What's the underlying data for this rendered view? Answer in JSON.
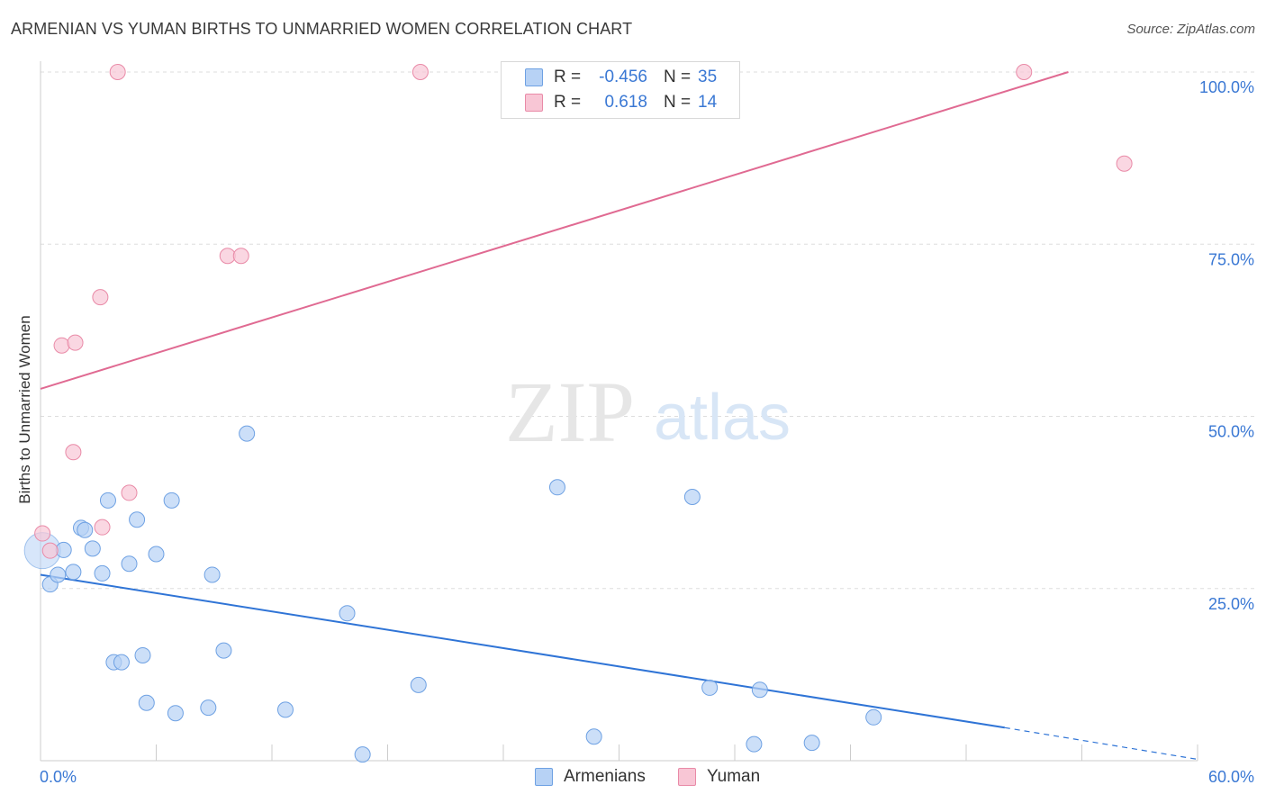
{
  "header": {
    "title": "ARMENIAN VS YUMAN BIRTHS TO UNMARRIED WOMEN CORRELATION CHART",
    "source": "Source: ZipAtlas.com"
  },
  "watermark": {
    "zip": "ZIP",
    "atlas": "atlas"
  },
  "legend": {
    "rows": [
      {
        "r_label": "R =",
        "r_value": "-0.456",
        "n_label": "N =",
        "n_value": "35"
      },
      {
        "r_label": "R =",
        "r_value": "0.618",
        "n_label": "N =",
        "n_value": "14"
      }
    ]
  },
  "bottom_legend": {
    "armenians": "Armenians",
    "yuman": "Yuman"
  },
  "colors": {
    "armenian_fill": "#b7d2f5",
    "armenian_stroke": "#6ea1e3",
    "armenian_line": "#2f74d6",
    "yuman_fill": "#f8c6d5",
    "yuman_stroke": "#e98aa7",
    "yuman_line": "#e06a92",
    "axis_text": "#3a78d4",
    "grid": "#dddddd"
  },
  "chart_data": {
    "type": "scatter",
    "title": "ARMENIAN VS YUMAN BIRTHS TO UNMARRIED WOMEN CORRELATION CHART",
    "xlabel": "",
    "ylabel": "Births to Unmarried Women",
    "xlim": [
      0,
      60
    ],
    "ylim": [
      0,
      100
    ],
    "x_tick_labels": [
      "0.0%",
      "60.0%"
    ],
    "y_ticks": [
      25,
      50,
      75,
      100
    ],
    "y_tick_labels": [
      "25.0%",
      "50.0%",
      "75.0%",
      "100.0%"
    ],
    "series": [
      {
        "name": "Armenians",
        "r": -0.456,
        "n": 35,
        "points": [
          [
            0.1,
            30.5
          ],
          [
            0.5,
            25.6
          ],
          [
            0.9,
            27.0
          ],
          [
            1.2,
            30.6
          ],
          [
            1.7,
            27.4
          ],
          [
            2.1,
            33.8
          ],
          [
            2.3,
            33.5
          ],
          [
            2.7,
            30.8
          ],
          [
            3.2,
            27.2
          ],
          [
            3.5,
            37.8
          ],
          [
            3.8,
            14.3
          ],
          [
            4.2,
            14.3
          ],
          [
            4.6,
            28.6
          ],
          [
            5.0,
            35.0
          ],
          [
            5.3,
            15.3
          ],
          [
            5.5,
            8.4
          ],
          [
            6.0,
            30.0
          ],
          [
            6.8,
            37.8
          ],
          [
            7.0,
            6.9
          ],
          [
            8.7,
            7.7
          ],
          [
            8.9,
            27.0
          ],
          [
            9.5,
            16.0
          ],
          [
            10.7,
            47.5
          ],
          [
            12.7,
            7.4
          ],
          [
            15.9,
            21.4
          ],
          [
            16.7,
            0.9
          ],
          [
            19.6,
            11.0
          ],
          [
            26.8,
            39.7
          ],
          [
            28.7,
            3.5
          ],
          [
            33.8,
            38.3
          ],
          [
            34.7,
            10.6
          ],
          [
            37.0,
            2.4
          ],
          [
            37.3,
            10.3
          ],
          [
            40.0,
            2.6
          ],
          [
            43.2,
            6.3
          ]
        ],
        "trend": {
          "x0": 0,
          "y0": 27.0,
          "x1": 50,
          "y1": 4.8,
          "dash_to_x": 60,
          "dash_to_y": 0.2
        }
      },
      {
        "name": "Yuman",
        "r": 0.618,
        "n": 14,
        "points": [
          [
            0.1,
            33.0
          ],
          [
            0.5,
            30.5
          ],
          [
            1.1,
            60.3
          ],
          [
            1.8,
            60.7
          ],
          [
            1.7,
            44.8
          ],
          [
            3.1,
            67.3
          ],
          [
            3.2,
            33.9
          ],
          [
            4.6,
            38.9
          ],
          [
            4.0,
            100.0
          ],
          [
            9.7,
            73.3
          ],
          [
            10.4,
            73.3
          ],
          [
            19.7,
            100.0
          ],
          [
            51.0,
            100.0
          ],
          [
            56.2,
            86.7
          ]
        ],
        "trend": {
          "x0": 0,
          "y0": 54.0,
          "x1": 53.3,
          "y1": 100
        }
      }
    ]
  }
}
